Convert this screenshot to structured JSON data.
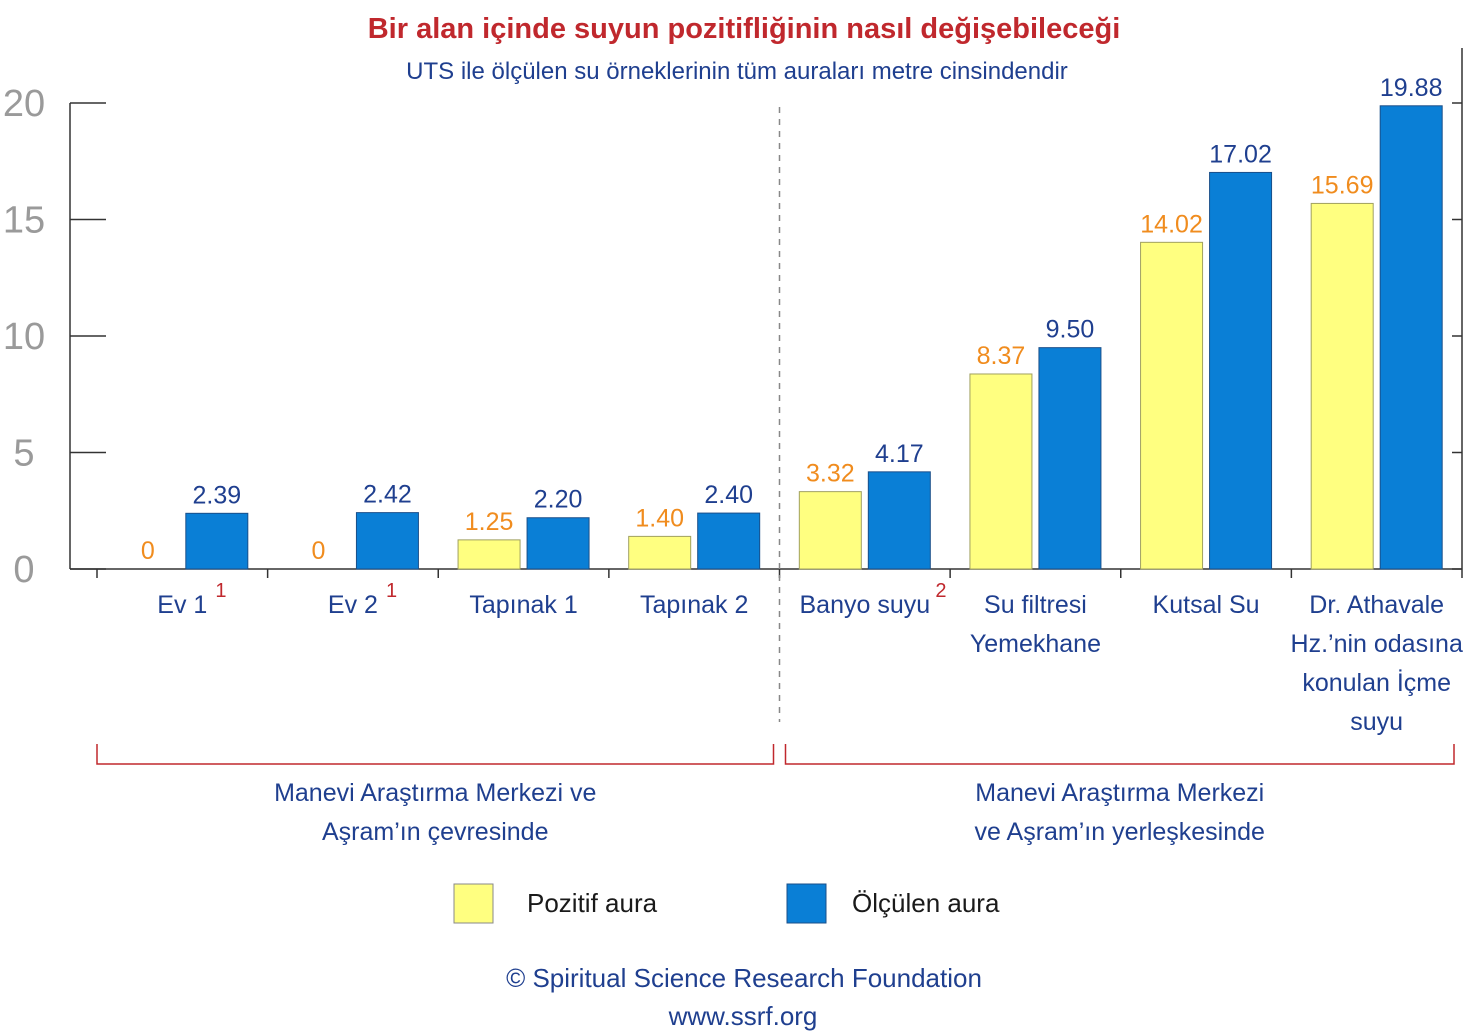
{
  "chart_data": {
    "type": "bar",
    "title": "Bir alan içinde suyun pozitifliğinin nasıl değişebileceği",
    "subtitle": "UTS ile ölçülen su örneklerinin tüm auraları metre cinsindendir",
    "ylim": [
      0,
      20
    ],
    "yticks": [
      "0",
      "5",
      "10",
      "15",
      "20"
    ],
    "categories": [
      {
        "lines": [
          "Ev 1"
        ],
        "footnote": "1"
      },
      {
        "lines": [
          "Ev 2"
        ],
        "footnote": "1"
      },
      {
        "lines": [
          "Tapınak 1"
        ],
        "footnote": ""
      },
      {
        "lines": [
          "Tapınak 2"
        ],
        "footnote": ""
      },
      {
        "lines": [
          "Banyo suyu"
        ],
        "footnote": "2"
      },
      {
        "lines": [
          "Su filtresi",
          "Yemekhane"
        ],
        "footnote": ""
      },
      {
        "lines": [
          "Kutsal Su"
        ],
        "footnote": ""
      },
      {
        "lines": [
          "Dr. Athavale",
          "Hz.’nin odasına",
          "konulan İçme",
          "suyu"
        ],
        "footnote": ""
      }
    ],
    "series": [
      {
        "name": "Pozitif aura",
        "color": "#ffff80",
        "values": [
          0,
          0,
          1.25,
          1.4,
          3.32,
          8.37,
          14.02,
          15.69
        ],
        "labels": [
          "0",
          "0",
          "1.25",
          "1.40",
          "3.32",
          "8.37",
          "14.02",
          "15.69"
        ]
      },
      {
        "name": "Ölçülen aura",
        "color": "#0a7fd6",
        "values": [
          2.39,
          2.42,
          2.2,
          2.4,
          4.17,
          9.5,
          17.02,
          19.88
        ],
        "labels": [
          "2.39",
          "2.42",
          "2.20",
          "2.40",
          "4.17",
          "9.50",
          "17.02",
          "19.88"
        ]
      }
    ],
    "groups": [
      {
        "lines": [
          "Manevi Araştırma Merkezi ve",
          "Aşram’ın çevresinde"
        ]
      },
      {
        "lines": [
          "Manevi Araştırma Merkezi",
          "ve Aşram’ın yerleşkesinde"
        ]
      }
    ],
    "legend_position": "bottom",
    "grid": false
  },
  "footer": {
    "copyright": "© Spiritual Science Research Foundation",
    "url": "www.ssrf.org"
  }
}
